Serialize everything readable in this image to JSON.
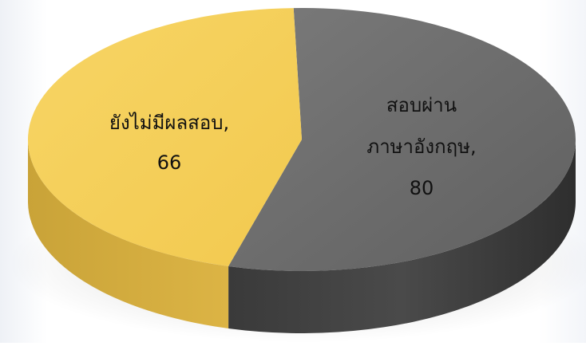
{
  "chart_data": {
    "type": "pie",
    "style": "3d",
    "categories": [
      "สอบผ่านภาษาอังกฤษ",
      "ยังไม่มีผลสอบ"
    ],
    "values": [
      80,
      66
    ],
    "colors": [
      "#707070",
      "#F5CF5E"
    ],
    "data_labels": [
      {
        "lines": [
          "สอบผ่าน",
          "ภาษาอังกฤษ,",
          "80"
        ]
      },
      {
        "lines": [
          "ยังไม่มีผลสอบ,",
          "66"
        ]
      }
    ]
  }
}
